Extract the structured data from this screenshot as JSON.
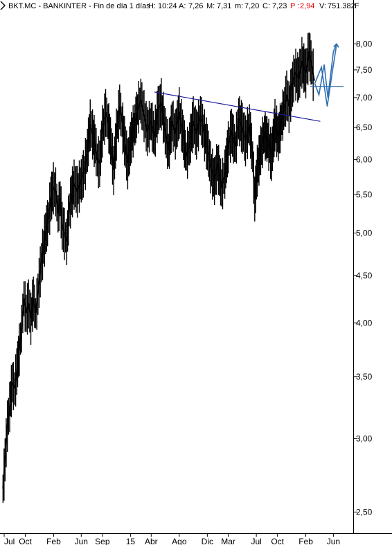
{
  "header": {
    "symbol": "BKT.MC - BANKINTER - Fin de día 1 días",
    "h_label": "H:",
    "h_value": "10:24",
    "a_label": "A:",
    "a_value": "7,26",
    "m_label": "M:",
    "m_value": "7,31",
    "mn_label": "m:",
    "mn_value": "7,20",
    "c_label": "C:",
    "c_value": "7,23",
    "p_label": "P :",
    "p_value": "2,94",
    "v_label": "V:",
    "v_value": "751.382",
    "trail": "F"
  },
  "colors": {
    "price": "#000000",
    "trendline": "#1a1a9c",
    "projection": "#2f6fb0",
    "percent": "#e00000",
    "grid_tick": "#000000"
  },
  "chart_data": {
    "type": "line",
    "yscale": "log",
    "ylim": [
      2.38,
      8.65
    ],
    "y_ticks": [
      2.5,
      3.0,
      3.5,
      4.0,
      4.5,
      5.0,
      5.5,
      6.0,
      6.5,
      7.0,
      7.5,
      8.0
    ],
    "y_tick_labels": [
      "2,50",
      "3,00",
      "3,50",
      "4,00",
      "4,50",
      "5,00",
      "5,50",
      "6,00",
      "6,50",
      "7,00",
      "7,50",
      "8,00"
    ],
    "x_tick_labels": [
      "Jul",
      "Oct",
      "Feb",
      "Jun",
      "Sep",
      "15",
      "Abr",
      "Ago",
      "Dic",
      "Mar",
      "Jul",
      "Oct",
      "Feb",
      "Jun"
    ],
    "x_tick_dates": [
      "2013-07-01",
      "2013-10-01",
      "2014-02-01",
      "2014-06-01",
      "2014-09-01",
      "2015-01-01",
      "2015-04-01",
      "2015-08-01",
      "2015-12-01",
      "2016-03-01",
      "2016-07-01",
      "2016-10-01",
      "2017-02-01",
      "2017-06-01"
    ],
    "x_range": [
      "2013-06-25",
      "2017-08-20"
    ],
    "series": [
      {
        "type": "price",
        "points": [
          [
            "2013-06-26",
            2.65
          ],
          [
            "2013-07-05",
            2.85
          ],
          [
            "2013-07-15",
            3.1
          ],
          [
            "2013-07-25",
            3.25
          ],
          [
            "2013-08-05",
            3.45
          ],
          [
            "2013-08-15",
            3.4
          ],
          [
            "2013-08-25",
            3.55
          ],
          [
            "2013-09-05",
            3.75
          ],
          [
            "2013-09-15",
            3.95
          ],
          [
            "2013-09-25",
            4.25
          ],
          [
            "2013-10-05",
            4.1
          ],
          [
            "2013-10-15",
            4.2
          ],
          [
            "2013-10-25",
            4.05
          ],
          [
            "2013-11-05",
            4.25
          ],
          [
            "2013-11-15",
            4.1
          ],
          [
            "2013-11-25",
            4.3
          ],
          [
            "2013-12-05",
            4.55
          ],
          [
            "2013-12-15",
            4.75
          ],
          [
            "2013-12-28",
            5.0
          ],
          [
            "2014-01-10",
            5.2
          ],
          [
            "2014-01-20",
            5.45
          ],
          [
            "2014-01-31",
            5.6
          ],
          [
            "2014-02-10",
            5.55
          ],
          [
            "2014-02-20",
            5.25
          ],
          [
            "2014-03-01",
            5.45
          ],
          [
            "2014-03-10",
            5.1
          ],
          [
            "2014-03-20",
            5.0
          ],
          [
            "2014-03-30",
            4.9
          ],
          [
            "2014-04-10",
            5.3
          ],
          [
            "2014-04-20",
            5.5
          ],
          [
            "2014-05-01",
            5.65
          ],
          [
            "2014-05-15",
            5.55
          ],
          [
            "2014-06-01",
            5.7
          ],
          [
            "2014-06-15",
            5.85
          ],
          [
            "2014-06-28",
            6.15
          ],
          [
            "2014-07-10",
            6.55
          ],
          [
            "2014-07-20",
            6.4
          ],
          [
            "2014-07-31",
            6.25
          ],
          [
            "2014-08-10",
            6.0
          ],
          [
            "2014-08-20",
            5.95
          ],
          [
            "2014-09-01",
            6.45
          ],
          [
            "2014-09-15",
            6.75
          ],
          [
            "2014-09-25",
            6.6
          ],
          [
            "2014-10-10",
            6.2
          ],
          [
            "2014-10-20",
            5.85
          ],
          [
            "2014-11-01",
            6.4
          ],
          [
            "2014-11-15",
            6.85
          ],
          [
            "2014-11-25",
            6.6
          ],
          [
            "2014-12-10",
            6.2
          ],
          [
            "2014-12-20",
            5.95
          ],
          [
            "2015-01-05",
            6.35
          ],
          [
            "2015-01-20",
            6.55
          ],
          [
            "2015-02-01",
            6.8
          ],
          [
            "2015-02-15",
            6.95
          ],
          [
            "2015-03-01",
            6.7
          ],
          [
            "2015-03-15",
            6.45
          ],
          [
            "2015-04-01",
            6.6
          ],
          [
            "2015-04-15",
            6.35
          ],
          [
            "2015-05-01",
            6.8
          ],
          [
            "2015-05-15",
            6.9
          ],
          [
            "2015-06-01",
            6.45
          ],
          [
            "2015-06-15",
            6.15
          ],
          [
            "2015-07-01",
            6.6
          ],
          [
            "2015-07-15",
            6.4
          ],
          [
            "2015-08-01",
            6.75
          ],
          [
            "2015-08-15",
            6.45
          ],
          [
            "2015-09-01",
            6.05
          ],
          [
            "2015-09-15",
            6.25
          ],
          [
            "2015-10-01",
            6.6
          ],
          [
            "2015-10-15",
            6.4
          ],
          [
            "2015-11-01",
            6.7
          ],
          [
            "2015-11-15",
            6.45
          ],
          [
            "2015-12-01",
            6.2
          ],
          [
            "2015-12-15",
            5.9
          ],
          [
            "2016-01-01",
            5.7
          ],
          [
            "2016-01-15",
            5.95
          ],
          [
            "2016-02-01",
            5.6
          ],
          [
            "2016-02-15",
            5.8
          ],
          [
            "2016-03-01",
            6.2
          ],
          [
            "2016-03-15",
            6.45
          ],
          [
            "2016-04-01",
            6.2
          ],
          [
            "2016-04-15",
            6.65
          ],
          [
            "2016-05-01",
            6.5
          ],
          [
            "2016-05-15",
            6.3
          ],
          [
            "2016-06-01",
            6.55
          ],
          [
            "2016-06-15",
            6.05
          ],
          [
            "2016-06-24",
            5.45
          ],
          [
            "2016-07-05",
            5.85
          ],
          [
            "2016-07-20",
            6.15
          ],
          [
            "2016-08-05",
            6.4
          ],
          [
            "2016-08-20",
            6.3
          ],
          [
            "2016-09-05",
            6.05
          ],
          [
            "2016-09-20",
            6.55
          ],
          [
            "2016-10-05",
            6.35
          ],
          [
            "2016-10-20",
            6.65
          ],
          [
            "2016-11-01",
            6.85
          ],
          [
            "2016-11-10",
            7.05
          ],
          [
            "2016-11-20",
            6.85
          ],
          [
            "2016-12-01",
            7.15
          ],
          [
            "2016-12-15",
            7.45
          ],
          [
            "2017-01-01",
            7.35
          ],
          [
            "2017-01-15",
            7.65
          ],
          [
            "2017-02-01",
            7.45
          ],
          [
            "2017-02-15",
            7.85
          ],
          [
            "2017-02-28",
            7.55
          ],
          [
            "2017-03-10",
            7.3
          ]
        ]
      },
      {
        "type": "trendline",
        "points": [
          [
            "2015-04-15",
            7.1
          ],
          [
            "2017-04-05",
            6.6
          ]
        ]
      },
      {
        "type": "support_line",
        "points": [
          [
            "2017-02-20",
            7.2
          ],
          [
            "2017-07-15",
            7.2
          ]
        ]
      },
      {
        "type": "projection",
        "points": [
          [
            "2017-03-12",
            7.25
          ],
          [
            "2017-03-30",
            7.05
          ],
          [
            "2017-04-22",
            7.6
          ],
          [
            "2017-05-08",
            7.0
          ],
          [
            "2017-06-01",
            7.85
          ],
          [
            "2017-06-14",
            8.0
          ]
        ]
      },
      {
        "type": "projection",
        "points": [
          [
            "2017-03-12",
            7.25
          ],
          [
            "2017-04-10",
            7.55
          ],
          [
            "2017-05-05",
            6.85
          ],
          [
            "2017-05-25",
            7.4
          ],
          [
            "2017-06-15",
            8.0
          ]
        ]
      }
    ]
  }
}
